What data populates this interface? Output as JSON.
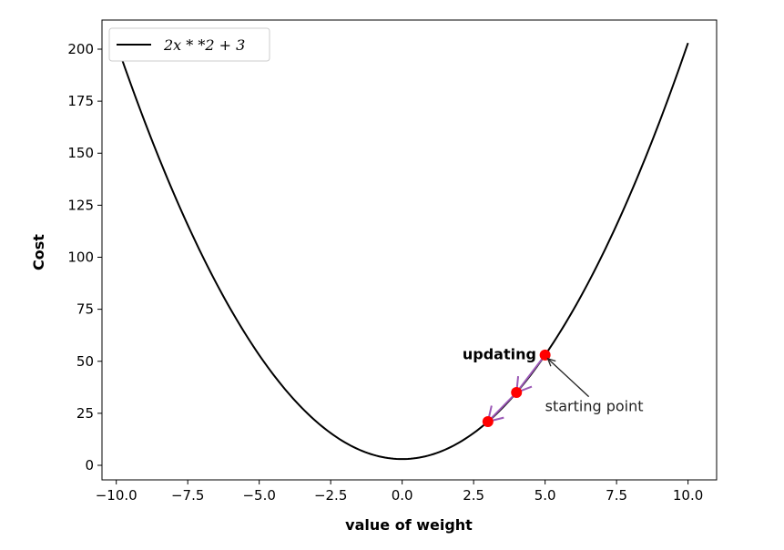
{
  "chart_data": {
    "type": "line",
    "title": "",
    "xlabel": "value of weight",
    "ylabel": "Cost",
    "xlim": [
      -10.5,
      11.0
    ],
    "ylim": [
      -7,
      214
    ],
    "xticks": [
      -10.0,
      -7.5,
      -5.0,
      -2.5,
      0.0,
      2.5,
      5.0,
      7.5,
      10.0
    ],
    "xtick_labels": [
      "−10.0",
      "−7.5",
      "−5.0",
      "−2.5",
      "0.0",
      "2.5",
      "5.0",
      "7.5",
      "10.0"
    ],
    "yticks": [
      0,
      25,
      50,
      75,
      100,
      125,
      150,
      175,
      200
    ],
    "ytick_labels": [
      "0",
      "25",
      "50",
      "75",
      "100",
      "125",
      "150",
      "175",
      "200"
    ],
    "grid": false,
    "legend_position": "top-left",
    "series": [
      {
        "name": "2x * *2 + 3",
        "function": "2x^2+3",
        "x_range": [
          -10,
          10
        ],
        "color": "#000000"
      }
    ],
    "points": [
      {
        "x": 5,
        "y": 53
      },
      {
        "x": 4,
        "y": 35
      },
      {
        "x": 3,
        "y": 21
      }
    ],
    "point_color": "#ff0000",
    "arrow_color": "#9b59b6",
    "annotations": {
      "updating": {
        "text": "updating",
        "x": 3.4,
        "y": 51
      },
      "starting_point": {
        "text": "starting point",
        "x": 5,
        "y": 26,
        "target_x": 5,
        "target_y": 53
      }
    }
  }
}
